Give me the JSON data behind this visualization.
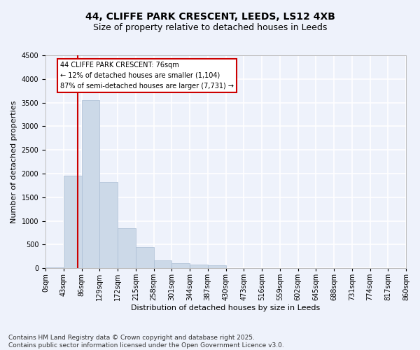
{
  "title_line1": "44, CLIFFE PARK CRESCENT, LEEDS, LS12 4XB",
  "title_line2": "Size of property relative to detached houses in Leeds",
  "xlabel": "Distribution of detached houses by size in Leeds",
  "ylabel": "Number of detached properties",
  "bar_values": [
    20,
    1950,
    3550,
    1820,
    840,
    440,
    165,
    110,
    75,
    60,
    0,
    0,
    0,
    0,
    0,
    0,
    0,
    0,
    0,
    0
  ],
  "bin_labels": [
    "0sqm",
    "43sqm",
    "86sqm",
    "129sqm",
    "172sqm",
    "215sqm",
    "258sqm",
    "301sqm",
    "344sqm",
    "387sqm",
    "430sqm",
    "473sqm",
    "516sqm",
    "559sqm",
    "602sqm",
    "645sqm",
    "688sqm",
    "731sqm",
    "774sqm",
    "817sqm",
    "860sqm"
  ],
  "bar_color": "#ccd9e8",
  "bar_edgecolor": "#aabdd4",
  "vline_color": "#cc0000",
  "annotation_text": "44 CLIFFE PARK CRESCENT: 76sqm\n← 12% of detached houses are smaller (1,104)\n87% of semi-detached houses are larger (7,731) →",
  "annotation_box_color": "#cc0000",
  "ylim": [
    0,
    4500
  ],
  "yticks": [
    0,
    500,
    1000,
    1500,
    2000,
    2500,
    3000,
    3500,
    4000,
    4500
  ],
  "footer_line1": "Contains HM Land Registry data © Crown copyright and database right 2025.",
  "footer_line2": "Contains public sector information licensed under the Open Government Licence v3.0.",
  "bg_color": "#eef2fb",
  "grid_color": "#ffffff",
  "title_fontsize": 10,
  "subtitle_fontsize": 9,
  "axis_label_fontsize": 8,
  "tick_fontsize": 7,
  "annotation_fontsize": 7,
  "footer_fontsize": 6.5
}
